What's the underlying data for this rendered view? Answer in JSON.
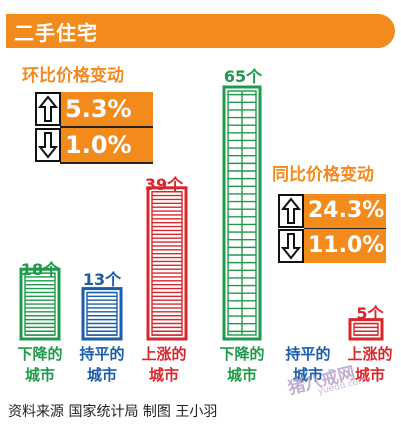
{
  "header": {
    "title": "二手住宅",
    "bar_color": "#f28a1c"
  },
  "chain": {
    "title": "环比价格变动",
    "up": {
      "value": "5.3%",
      "icon": "up-arrow-icon"
    },
    "down": {
      "value": "1.0%",
      "icon": "down-arrow-icon"
    }
  },
  "yoy": {
    "title": "同比价格变动",
    "up": {
      "value": "24.3%",
      "icon": "up-arrow-icon"
    },
    "down": {
      "value": "11.0%",
      "icon": "down-arrow-icon"
    }
  },
  "source": {
    "text": "资料来源 国家统计局  制图 王小羽"
  },
  "watermark": {
    "text": "猪八戒网",
    "sub": "yuedu.com"
  },
  "chart_data": [
    {
      "type": "bar",
      "title": "环比价格变动",
      "categories": [
        "下降的城市",
        "持平的城市",
        "上涨的城市"
      ],
      "values": [
        18,
        13,
        39
      ],
      "value_labels": [
        "18个",
        "13个",
        "39个"
      ],
      "colors": [
        "#1e9a4a",
        "#1a5da8",
        "#d9262a"
      ]
    },
    {
      "type": "bar",
      "title": "同比价格变动",
      "categories": [
        "下降的城市",
        "持平的城市",
        "上涨的城市"
      ],
      "values": [
        65,
        0,
        5
      ],
      "value_labels": [
        "65个",
        "",
        "5个"
      ],
      "colors": [
        "#1e9a4a",
        "#1a5da8",
        "#d9262a"
      ]
    }
  ]
}
